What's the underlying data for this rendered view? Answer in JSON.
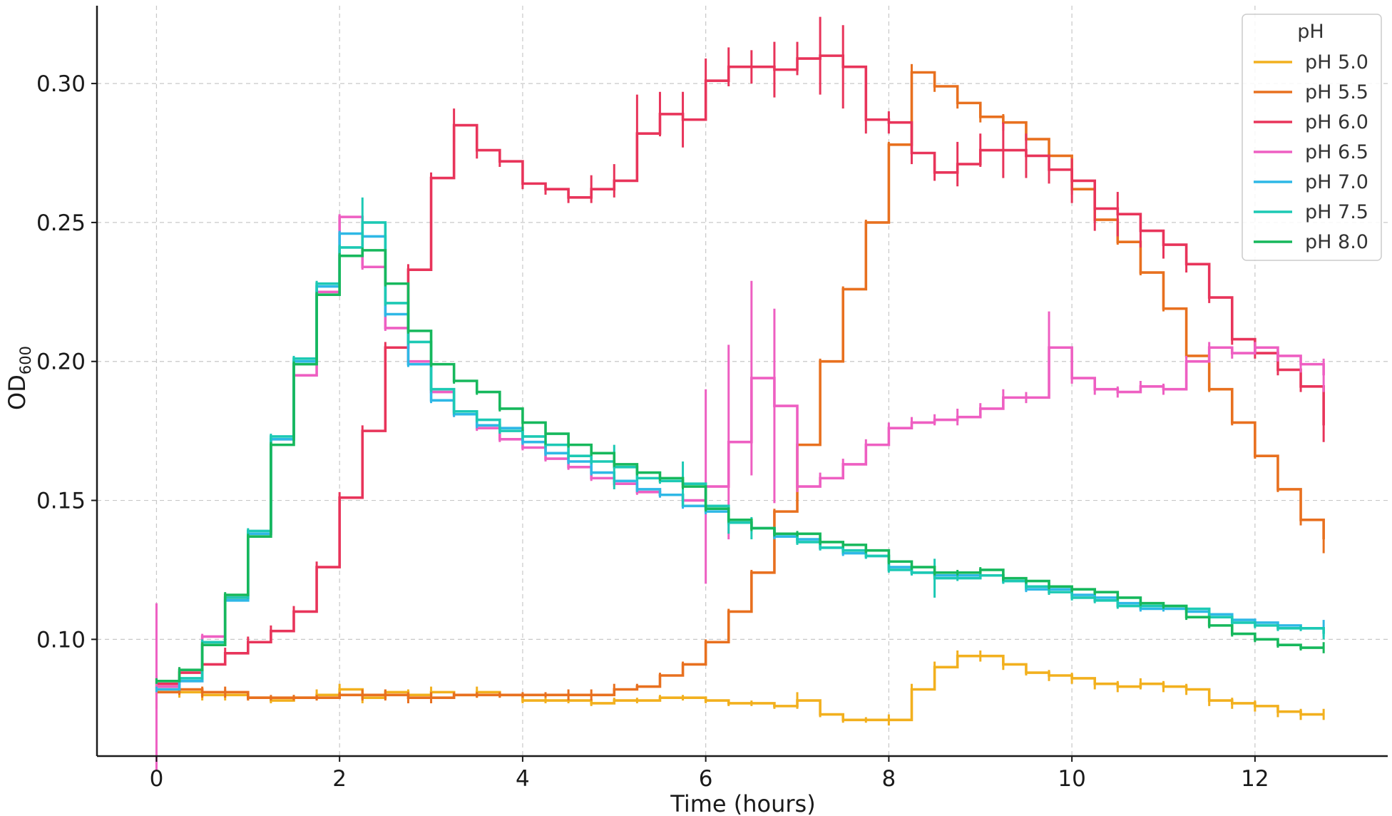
{
  "chart_data": {
    "type": "line",
    "xlabel": "Time (hours)",
    "ylabel_main": "OD",
    "ylabel_sub": "600",
    "xlim": [
      -0.65,
      13.45
    ],
    "ylim": [
      0.058,
      0.328
    ],
    "xticks": [
      0,
      2,
      4,
      6,
      8,
      10,
      12
    ],
    "xtick_labels": [
      "0",
      "2",
      "4",
      "6",
      "8",
      "10",
      "12"
    ],
    "yticks": [
      0.1,
      0.15,
      0.2,
      0.25,
      0.3
    ],
    "ytick_labels": [
      "0.10",
      "0.15",
      "0.20",
      "0.25",
      "0.30"
    ],
    "grid": true,
    "legend_title": "pH",
    "legend_position": "top-right",
    "series": [
      {
        "name": "pH 5.0",
        "color": "#F2B01E",
        "x": [
          0,
          0.25,
          0.5,
          0.75,
          1,
          1.25,
          1.5,
          1.75,
          2,
          2.25,
          2.5,
          2.75,
          3,
          3.25,
          3.5,
          3.75,
          4,
          4.25,
          4.5,
          4.75,
          5,
          5.25,
          5.5,
          5.75,
          6,
          6.25,
          6.5,
          6.75,
          7,
          7.25,
          7.5,
          7.75,
          8,
          8.25,
          8.5,
          8.75,
          9,
          9.25,
          9.5,
          9.75,
          10,
          10.25,
          10.5,
          10.75,
          11,
          11.25,
          11.5,
          11.75,
          12,
          12.25,
          12.5,
          12.75
        ],
        "y": [
          0.082,
          0.081,
          0.08,
          0.08,
          0.079,
          0.078,
          0.079,
          0.08,
          0.082,
          0.079,
          0.081,
          0.08,
          0.081,
          0.08,
          0.081,
          0.08,
          0.078,
          0.078,
          0.078,
          0.077,
          0.078,
          0.078,
          0.079,
          0.079,
          0.078,
          0.077,
          0.077,
          0.076,
          0.078,
          0.073,
          0.071,
          0.071,
          0.071,
          0.082,
          0.09,
          0.094,
          0.094,
          0.091,
          0.088,
          0.087,
          0.086,
          0.084,
          0.083,
          0.084,
          0.083,
          0.082,
          0.078,
          0.077,
          0.076,
          0.074,
          0.073,
          0.073
        ],
        "err": [
          0.002,
          0.002,
          0.002,
          0.002,
          0.001,
          0.001,
          0.001,
          0.002,
          0.002,
          0.002,
          0.001,
          0.002,
          0.002,
          0.001,
          0.002,
          0.001,
          0.001,
          0.001,
          0.001,
          0.001,
          0.001,
          0.001,
          0.001,
          0.001,
          0.001,
          0.001,
          0.001,
          0.001,
          0.003,
          0.001,
          0.001,
          0.001,
          0.002,
          0.002,
          0.002,
          0.002,
          0.002,
          0.002,
          0.001,
          0.002,
          0.002,
          0.002,
          0.002,
          0.002,
          0.002,
          0.002,
          0.002,
          0.002,
          0.002,
          0.002,
          0.002,
          0.002
        ]
      },
      {
        "name": "pH 5.5",
        "color": "#E8701F",
        "x": [
          0,
          0.25,
          0.5,
          0.75,
          1,
          1.25,
          1.5,
          1.75,
          2,
          2.25,
          2.5,
          2.75,
          3,
          3.25,
          3.5,
          3.75,
          4,
          4.25,
          4.5,
          4.75,
          5,
          5.25,
          5.5,
          5.75,
          6,
          6.25,
          6.5,
          6.75,
          7,
          7.25,
          7.5,
          7.75,
          8,
          8.25,
          8.5,
          8.75,
          9,
          9.25,
          9.5,
          9.75,
          10,
          10.25,
          10.5,
          10.75,
          11,
          11.25,
          11.5,
          11.75,
          12,
          12.25,
          12.5,
          12.75
        ],
        "y": [
          0.081,
          0.082,
          0.081,
          0.081,
          0.079,
          0.079,
          0.079,
          0.079,
          0.08,
          0.08,
          0.08,
          0.079,
          0.079,
          0.08,
          0.08,
          0.08,
          0.08,
          0.08,
          0.08,
          0.08,
          0.082,
          0.083,
          0.087,
          0.091,
          0.099,
          0.11,
          0.124,
          0.146,
          0.17,
          0.2,
          0.226,
          0.25,
          0.278,
          0.304,
          0.299,
          0.293,
          0.288,
          0.286,
          0.28,
          0.274,
          0.262,
          0.251,
          0.243,
          0.232,
          0.219,
          0.202,
          0.19,
          0.178,
          0.166,
          0.154,
          0.143,
          0.136
        ],
        "err": [
          0.006,
          0.002,
          0.002,
          0.002,
          0.001,
          0.001,
          0.001,
          0.001,
          0.001,
          0.002,
          0.002,
          0.002,
          0.002,
          0.001,
          0.001,
          0.001,
          0.001,
          0.001,
          0.002,
          0.002,
          0.002,
          0.001,
          0.001,
          0.001,
          0.001,
          0.001,
          0.001,
          0.001,
          0.001,
          0.001,
          0.001,
          0.001,
          0.001,
          0.003,
          0.002,
          0.002,
          0.002,
          0.003,
          0.002,
          0.002,
          0.002,
          0.001,
          0.001,
          0.001,
          0.001,
          0.001,
          0.001,
          0.001,
          0.001,
          0.001,
          0.002,
          0.005
        ]
      },
      {
        "name": "pH 6.0",
        "color": "#E8345A",
        "x": [
          0,
          0.25,
          0.5,
          0.75,
          1,
          1.25,
          1.5,
          1.75,
          2,
          2.25,
          2.5,
          2.75,
          3,
          3.25,
          3.5,
          3.75,
          4,
          4.25,
          4.5,
          4.75,
          5,
          5.25,
          5.5,
          5.75,
          6,
          6.25,
          6.5,
          6.75,
          7,
          7.25,
          7.5,
          7.75,
          8,
          8.25,
          8.5,
          8.75,
          9,
          9.25,
          9.5,
          9.75,
          10,
          10.25,
          10.5,
          10.75,
          11,
          11.25,
          11.5,
          11.75,
          12,
          12.25,
          12.5,
          12.75
        ],
        "y": [
          0.084,
          0.088,
          0.091,
          0.095,
          0.099,
          0.103,
          0.11,
          0.126,
          0.151,
          0.175,
          0.205,
          0.233,
          0.266,
          0.285,
          0.276,
          0.272,
          0.264,
          0.262,
          0.259,
          0.262,
          0.265,
          0.282,
          0.289,
          0.287,
          0.301,
          0.306,
          0.306,
          0.305,
          0.309,
          0.31,
          0.306,
          0.287,
          0.286,
          0.275,
          0.268,
          0.271,
          0.276,
          0.276,
          0.274,
          0.269,
          0.265,
          0.255,
          0.253,
          0.247,
          0.242,
          0.235,
          0.223,
          0.208,
          0.203,
          0.197,
          0.191,
          0.177
        ],
        "err": [
          0.002,
          0.002,
          0.002,
          0.002,
          0.002,
          0.002,
          0.002,
          0.002,
          0.002,
          0.002,
          0.002,
          0.002,
          0.002,
          0.006,
          0.003,
          0.002,
          0.002,
          0.002,
          0.002,
          0.005,
          0.006,
          0.014,
          0.008,
          0.01,
          0.008,
          0.007,
          0.006,
          0.01,
          0.006,
          0.014,
          0.015,
          0.005,
          0.004,
          0.004,
          0.003,
          0.008,
          0.006,
          0.01,
          0.008,
          0.005,
          0.008,
          0.008,
          0.008,
          0.006,
          0.005,
          0.003,
          0.002,
          0.002,
          0.002,
          0.002,
          0.002,
          0.006
        ]
      },
      {
        "name": "pH 6.5",
        "color": "#EE5FC2",
        "x": [
          0,
          0.25,
          0.5,
          0.75,
          1,
          1.25,
          1.5,
          1.75,
          2,
          2.25,
          2.5,
          2.75,
          3,
          3.25,
          3.5,
          3.75,
          4,
          4.25,
          4.5,
          4.75,
          5,
          5.25,
          5.5,
          5.75,
          6,
          6.25,
          6.5,
          6.75,
          7,
          7.25,
          7.5,
          7.75,
          8,
          8.25,
          8.5,
          8.75,
          9,
          9.25,
          9.5,
          9.75,
          10,
          10.25,
          10.5,
          10.75,
          11,
          11.25,
          11.5,
          11.75,
          12,
          12.25,
          12.5,
          12.75
        ],
        "y": [
          0.083,
          0.085,
          0.101,
          0.115,
          0.138,
          0.172,
          0.195,
          0.225,
          0.252,
          0.234,
          0.212,
          0.2,
          0.189,
          0.181,
          0.176,
          0.172,
          0.169,
          0.165,
          0.162,
          0.158,
          0.156,
          0.153,
          0.152,
          0.15,
          0.155,
          0.171,
          0.194,
          0.184,
          0.155,
          0.158,
          0.163,
          0.17,
          0.176,
          0.178,
          0.179,
          0.18,
          0.183,
          0.187,
          0.187,
          0.205,
          0.194,
          0.19,
          0.189,
          0.191,
          0.19,
          0.2,
          0.205,
          0.203,
          0.205,
          0.202,
          0.199,
          0.195
        ],
        "err": [
          0.03,
          0.001,
          0.001,
          0.001,
          0.001,
          0.001,
          0.001,
          0.001,
          0.001,
          0.001,
          0.001,
          0.001,
          0.001,
          0.001,
          0.001,
          0.001,
          0.001,
          0.001,
          0.001,
          0.001,
          0.001,
          0.001,
          0.001,
          0.001,
          0.035,
          0.035,
          0.035,
          0.035,
          0.002,
          0.002,
          0.002,
          0.002,
          0.002,
          0.002,
          0.002,
          0.003,
          0.002,
          0.003,
          0.002,
          0.013,
          0.002,
          0.002,
          0.002,
          0.002,
          0.002,
          0.002,
          0.002,
          0.002,
          0.002,
          0.002,
          0.003,
          0.006
        ]
      },
      {
        "name": "pH 7.0",
        "color": "#2EB8E6",
        "x": [
          0,
          0.25,
          0.5,
          0.75,
          1,
          1.25,
          1.5,
          1.75,
          2,
          2.25,
          2.5,
          2.75,
          3,
          3.25,
          3.5,
          3.75,
          4,
          4.25,
          4.5,
          4.75,
          5,
          5.25,
          5.5,
          5.75,
          6,
          6.25,
          6.5,
          6.75,
          7,
          7.25,
          7.5,
          7.75,
          8,
          8.25,
          8.5,
          8.75,
          9,
          9.25,
          9.5,
          9.75,
          10,
          10.25,
          10.5,
          10.75,
          11,
          11.25,
          11.5,
          11.75,
          12,
          12.25,
          12.5,
          12.75
        ],
        "y": [
          0.082,
          0.085,
          0.098,
          0.114,
          0.138,
          0.172,
          0.2,
          0.227,
          0.246,
          0.245,
          0.217,
          0.199,
          0.186,
          0.181,
          0.177,
          0.176,
          0.171,
          0.167,
          0.164,
          0.16,
          0.157,
          0.154,
          0.152,
          0.148,
          0.146,
          0.142,
          0.14,
          0.137,
          0.136,
          0.133,
          0.131,
          0.13,
          0.126,
          0.124,
          0.123,
          0.123,
          0.123,
          0.121,
          0.118,
          0.118,
          0.116,
          0.115,
          0.113,
          0.111,
          0.111,
          0.11,
          0.109,
          0.107,
          0.106,
          0.105,
          0.104,
          0.104
        ],
        "err": [
          0.001,
          0.001,
          0.001,
          0.001,
          0.001,
          0.001,
          0.001,
          0.001,
          0.001,
          0.001,
          0.001,
          0.001,
          0.001,
          0.001,
          0.001,
          0.001,
          0.001,
          0.001,
          0.001,
          0.001,
          0.001,
          0.001,
          0.001,
          0.001,
          0.001,
          0.001,
          0.001,
          0.001,
          0.001,
          0.001,
          0.001,
          0.001,
          0.001,
          0.001,
          0.001,
          0.001,
          0.001,
          0.001,
          0.001,
          0.001,
          0.001,
          0.001,
          0.001,
          0.001,
          0.001,
          0.001,
          0.001,
          0.001,
          0.001,
          0.001,
          0.001,
          0.003
        ]
      },
      {
        "name": "pH 7.5",
        "color": "#1CC9B4",
        "x": [
          0,
          0.25,
          0.5,
          0.75,
          1,
          1.25,
          1.5,
          1.75,
          2,
          2.25,
          2.5,
          2.75,
          3,
          3.25,
          3.5,
          3.75,
          4,
          4.25,
          4.5,
          4.75,
          5,
          5.25,
          5.5,
          5.75,
          6,
          6.25,
          6.5,
          6.75,
          7,
          7.25,
          7.5,
          7.75,
          8,
          8.25,
          8.5,
          8.75,
          9,
          9.25,
          9.5,
          9.75,
          10,
          10.25,
          10.5,
          10.75,
          11,
          11.25,
          11.5,
          11.75,
          12,
          12.25,
          12.5,
          12.75
        ],
        "y": [
          0.085,
          0.086,
          0.099,
          0.115,
          0.139,
          0.173,
          0.201,
          0.228,
          0.241,
          0.25,
          0.221,
          0.207,
          0.19,
          0.182,
          0.179,
          0.175,
          0.173,
          0.17,
          0.166,
          0.164,
          0.162,
          0.158,
          0.157,
          0.156,
          0.148,
          0.142,
          0.14,
          0.138,
          0.135,
          0.133,
          0.132,
          0.13,
          0.125,
          0.124,
          0.122,
          0.122,
          0.123,
          0.121,
          0.119,
          0.117,
          0.115,
          0.114,
          0.112,
          0.112,
          0.112,
          0.111,
          0.108,
          0.106,
          0.105,
          0.104,
          0.104,
          0.102
        ],
        "err": [
          0.001,
          0.001,
          0.001,
          0.001,
          0.001,
          0.001,
          0.001,
          0.001,
          0.001,
          0.009,
          0.001,
          0.001,
          0.001,
          0.001,
          0.001,
          0.001,
          0.001,
          0.001,
          0.001,
          0.001,
          0.008,
          0.001,
          0.001,
          0.008,
          0.001,
          0.004,
          0.004,
          0.001,
          0.001,
          0.001,
          0.001,
          0.001,
          0.001,
          0.001,
          0.007,
          0.001,
          0.001,
          0.001,
          0.001,
          0.001,
          0.001,
          0.001,
          0.001,
          0.001,
          0.001,
          0.001,
          0.001,
          0.001,
          0.001,
          0.001,
          0.001,
          0.002
        ]
      },
      {
        "name": "pH 8.0",
        "color": "#16B85C",
        "x": [
          0,
          0.25,
          0.5,
          0.75,
          1,
          1.25,
          1.5,
          1.75,
          2,
          2.25,
          2.5,
          2.75,
          3,
          3.25,
          3.5,
          3.75,
          4,
          4.25,
          4.5,
          4.75,
          5,
          5.25,
          5.5,
          5.75,
          6,
          6.25,
          6.5,
          6.75,
          7,
          7.25,
          7.5,
          7.75,
          8,
          8.25,
          8.5,
          8.75,
          9,
          9.25,
          9.5,
          9.75,
          10,
          10.25,
          10.5,
          10.75,
          11,
          11.25,
          11.5,
          11.75,
          12,
          12.25,
          12.5,
          12.75
        ],
        "y": [
          0.085,
          0.089,
          0.098,
          0.116,
          0.137,
          0.17,
          0.199,
          0.224,
          0.238,
          0.24,
          0.228,
          0.211,
          0.199,
          0.193,
          0.189,
          0.183,
          0.178,
          0.174,
          0.17,
          0.167,
          0.163,
          0.16,
          0.158,
          0.155,
          0.147,
          0.143,
          0.14,
          0.138,
          0.138,
          0.135,
          0.134,
          0.132,
          0.128,
          0.126,
          0.124,
          0.124,
          0.125,
          0.122,
          0.121,
          0.119,
          0.118,
          0.117,
          0.115,
          0.113,
          0.112,
          0.108,
          0.105,
          0.102,
          0.1,
          0.098,
          0.097,
          0.097
        ],
        "err": [
          0.001,
          0.001,
          0.001,
          0.001,
          0.001,
          0.001,
          0.001,
          0.001,
          0.001,
          0.001,
          0.001,
          0.001,
          0.001,
          0.001,
          0.001,
          0.001,
          0.003,
          0.004,
          0.001,
          0.001,
          0.001,
          0.001,
          0.001,
          0.001,
          0.001,
          0.001,
          0.001,
          0.001,
          0.001,
          0.001,
          0.001,
          0.001,
          0.001,
          0.001,
          0.001,
          0.001,
          0.001,
          0.001,
          0.001,
          0.001,
          0.001,
          0.001,
          0.001,
          0.001,
          0.001,
          0.001,
          0.001,
          0.001,
          0.001,
          0.001,
          0.001,
          0.002
        ]
      }
    ]
  }
}
